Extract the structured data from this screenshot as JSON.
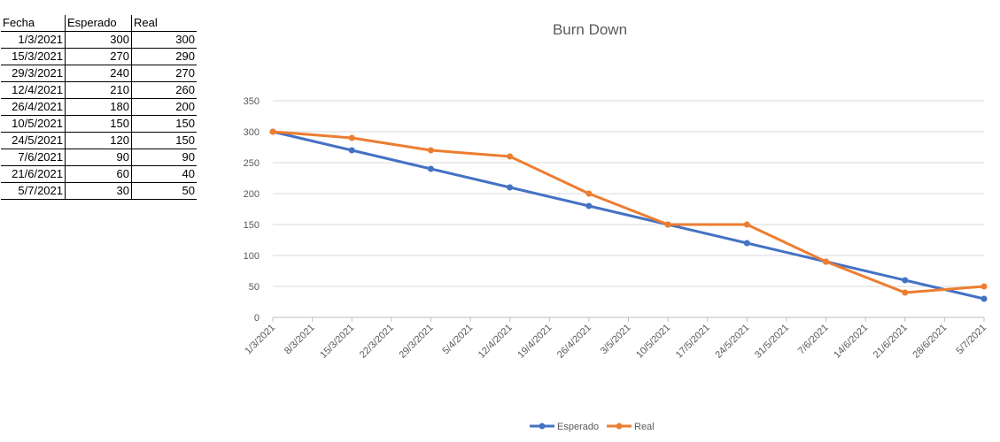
{
  "table": {
    "headers": [
      "Fecha",
      "Esperado",
      "Real"
    ],
    "rows": [
      [
        "1/3/2021",
        "300",
        "300"
      ],
      [
        "15/3/2021",
        "270",
        "290"
      ],
      [
        "29/3/2021",
        "240",
        "270"
      ],
      [
        "12/4/2021",
        "210",
        "260"
      ],
      [
        "26/4/2021",
        "180",
        "200"
      ],
      [
        "10/5/2021",
        "150",
        "150"
      ],
      [
        "24/5/2021",
        "120",
        "150"
      ],
      [
        "7/6/2021",
        "90",
        "90"
      ],
      [
        "21/6/2021",
        "60",
        "40"
      ],
      [
        "5/7/2021",
        "30",
        "50"
      ]
    ]
  },
  "chart_data": {
    "type": "line",
    "title": "Burn Down",
    "xlabel": "",
    "ylabel": "",
    "ylim": [
      0,
      350
    ],
    "yticks": [
      0,
      50,
      100,
      150,
      200,
      250,
      300,
      350
    ],
    "grid": true,
    "legend_position": "bottom",
    "xtick_labels": [
      "1/3/2021",
      "8/3/2021",
      "15/3/2021",
      "22/3/2021",
      "29/3/2021",
      "5/4/2021",
      "12/4/2021",
      "19/4/2021",
      "26/4/2021",
      "3/5/2021",
      "10/5/2021",
      "17/5/2021",
      "24/5/2021",
      "31/5/2021",
      "7/6/2021",
      "14/6/2021",
      "21/6/2021",
      "28/6/2021",
      "5/7/2021"
    ],
    "x": [
      "1/3/2021",
      "15/3/2021",
      "29/3/2021",
      "12/4/2021",
      "26/4/2021",
      "10/5/2021",
      "24/5/2021",
      "7/6/2021",
      "21/6/2021",
      "5/7/2021"
    ],
    "series": [
      {
        "name": "Esperado",
        "color": "#4472C4",
        "values": [
          300,
          270,
          240,
          210,
          180,
          150,
          120,
          90,
          60,
          30
        ]
      },
      {
        "name": "Real",
        "color": "#ED7D31",
        "values": [
          300,
          290,
          270,
          260,
          200,
          150,
          150,
          90,
          40,
          50
        ]
      }
    ]
  }
}
